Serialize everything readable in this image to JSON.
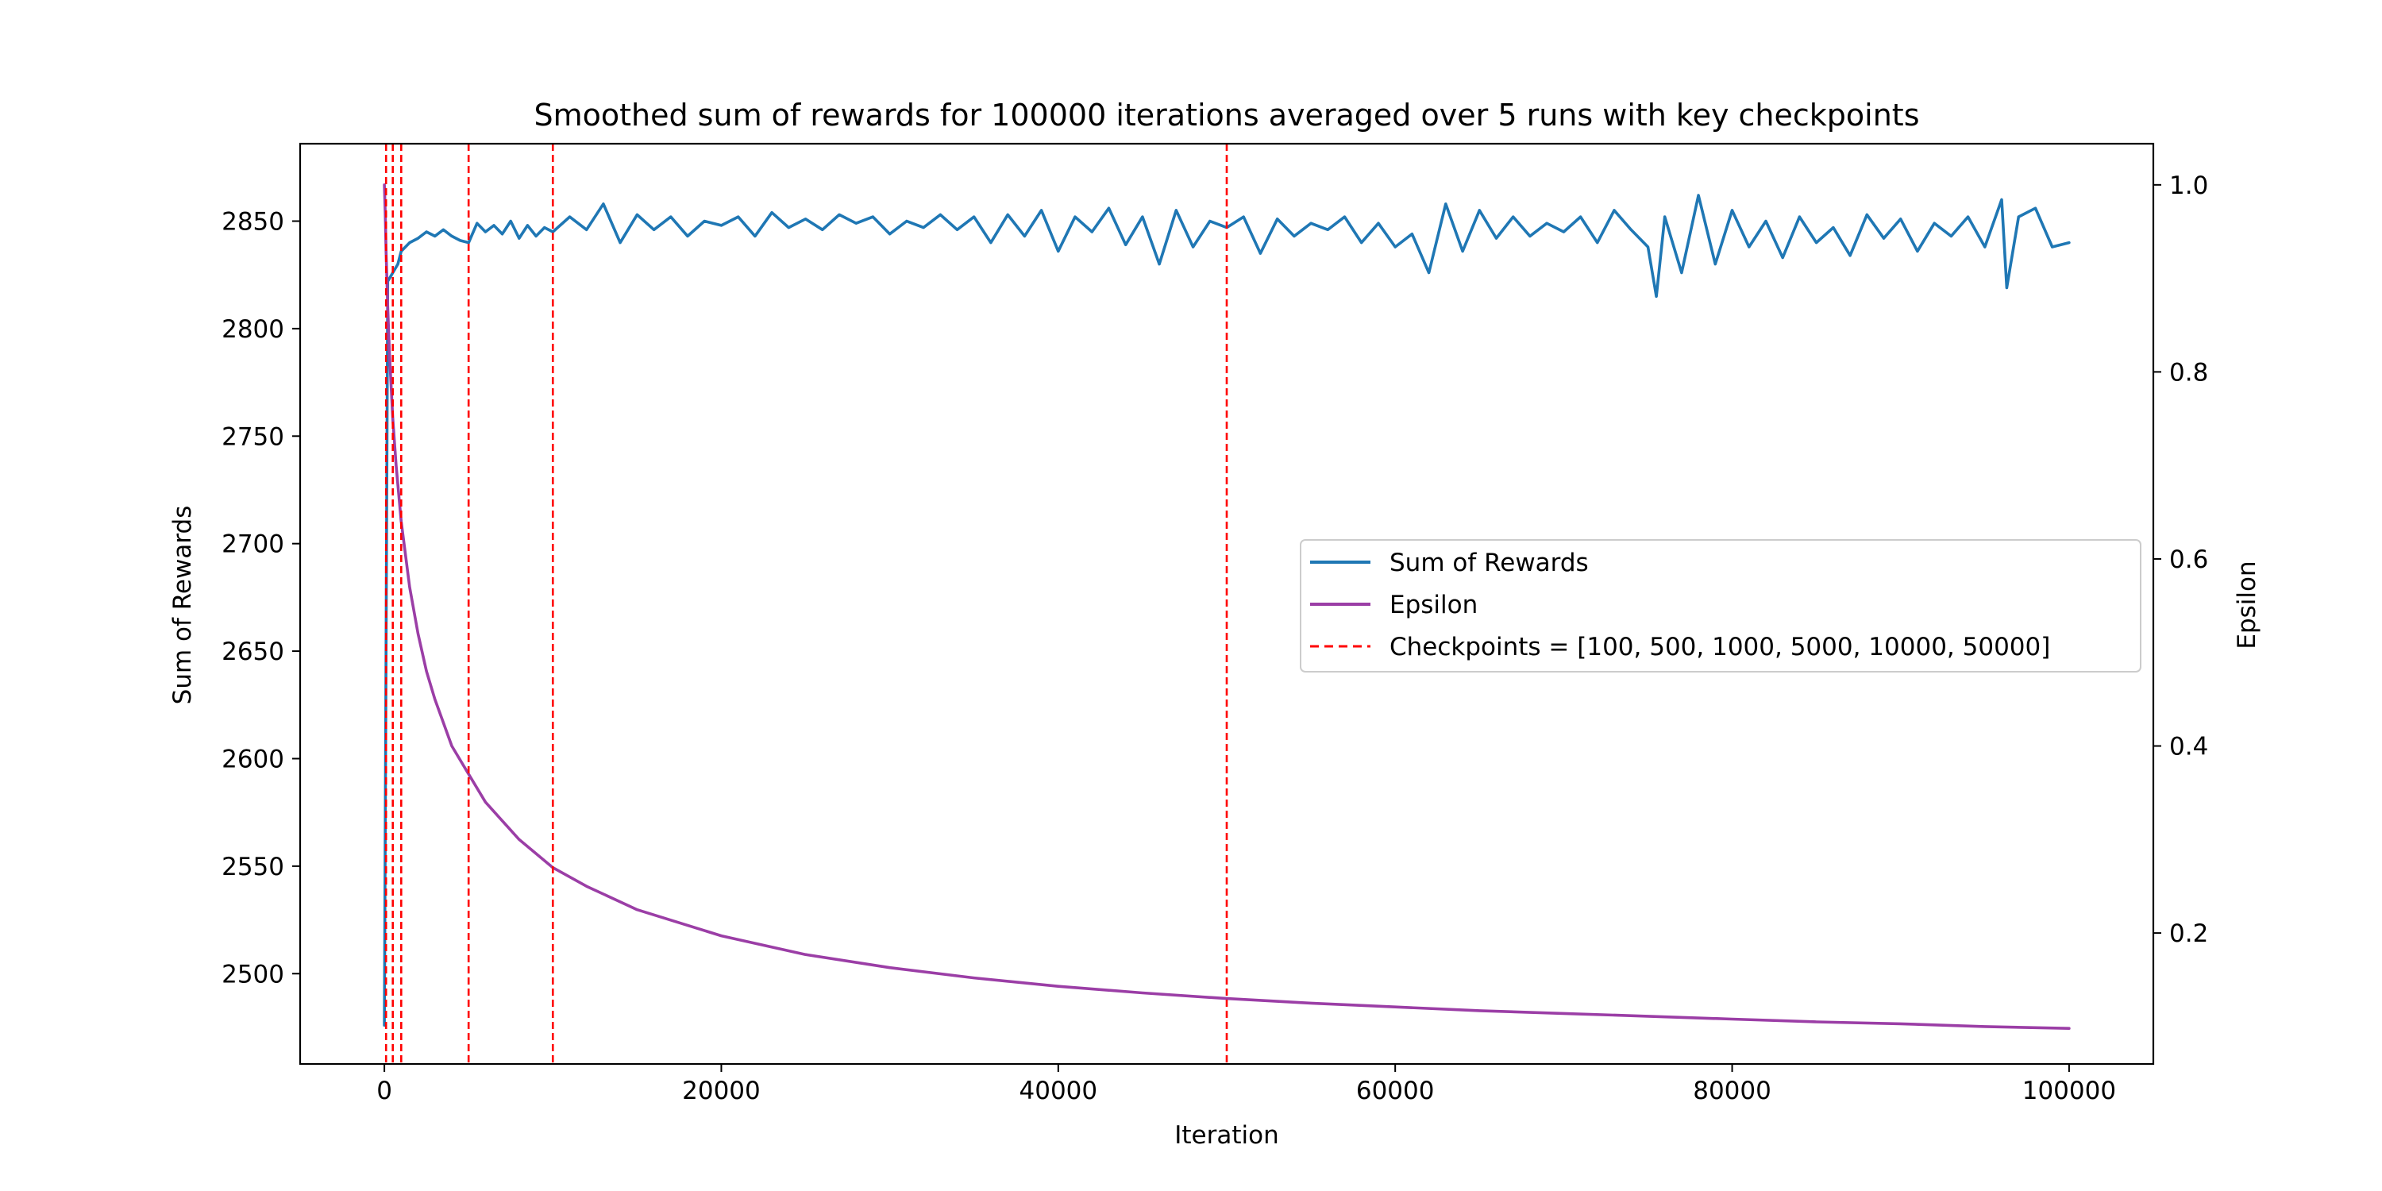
{
  "chart_data": {
    "type": "line",
    "title": "Smoothed sum of rewards for 100000 iterations averaged over 5 runs with key checkpoints",
    "xlabel": "Iteration",
    "ylabel_left": "Sum of Rewards",
    "ylabel_right": "Epsilon",
    "xlim": [
      -5000,
      105000
    ],
    "ylim_left": [
      2458,
      2886
    ],
    "ylim_right": [
      0.06,
      1.044
    ],
    "x_ticks": [
      0,
      20000,
      40000,
      60000,
      80000,
      100000
    ],
    "x_tick_labels": [
      "0",
      "20000",
      "40000",
      "60000",
      "80000",
      "100000"
    ],
    "y_ticks_left": [
      2500,
      2550,
      2600,
      2650,
      2700,
      2750,
      2800,
      2850
    ],
    "y_tick_labels_left": [
      "2500",
      "2550",
      "2600",
      "2650",
      "2700",
      "2750",
      "2800",
      "2850"
    ],
    "y_ticks_right": [
      0.2,
      0.4,
      0.6,
      0.8,
      1.0
    ],
    "y_tick_labels_right": [
      "0.2",
      "0.4",
      "0.6",
      "0.8",
      "1.0"
    ],
    "grid": false,
    "legend_placement": "center-right",
    "series": [
      {
        "name": "Sum of Rewards",
        "axis": "left",
        "color": "#1f77b4",
        "x": [
          0,
          200,
          500,
          800,
          1000,
          1500,
          2000,
          2500,
          3000,
          3500,
          4000,
          4500,
          5000,
          5500,
          6000,
          6500,
          7000,
          7500,
          8000,
          8500,
          9000,
          9500,
          10000,
          11000,
          12000,
          13000,
          14000,
          15000,
          16000,
          17000,
          18000,
          19000,
          20000,
          21000,
          22000,
          23000,
          24000,
          25000,
          26000,
          27000,
          28000,
          29000,
          30000,
          31000,
          32000,
          33000,
          34000,
          35000,
          36000,
          37000,
          38000,
          39000,
          40000,
          41000,
          42000,
          43000,
          44000,
          45000,
          46000,
          47000,
          48000,
          49000,
          50000,
          51000,
          52000,
          53000,
          54000,
          55000,
          56000,
          57000,
          58000,
          59000,
          60000,
          61000,
          62000,
          63000,
          64000,
          65000,
          66000,
          67000,
          68000,
          69000,
          70000,
          71000,
          72000,
          73000,
          74000,
          75000,
          75500,
          76000,
          77000,
          78000,
          79000,
          80000,
          81000,
          82000,
          83000,
          84000,
          85000,
          86000,
          87000,
          88000,
          89000,
          90000,
          91000,
          92000,
          93000,
          94000,
          95000,
          96000,
          96300,
          97000,
          98000,
          99000,
          100000
        ],
        "y": [
          2476,
          2822,
          2826,
          2830,
          2836,
          2840,
          2842,
          2845,
          2843,
          2846,
          2843,
          2841,
          2840,
          2849,
          2845,
          2848,
          2844,
          2850,
          2842,
          2848,
          2843,
          2847,
          2845,
          2852,
          2846,
          2858,
          2840,
          2853,
          2846,
          2852,
          2843,
          2850,
          2848,
          2852,
          2843,
          2854,
          2847,
          2851,
          2846,
          2853,
          2849,
          2852,
          2844,
          2850,
          2847,
          2853,
          2846,
          2852,
          2840,
          2853,
          2843,
          2855,
          2836,
          2852,
          2845,
          2856,
          2839,
          2852,
          2830,
          2855,
          2838,
          2850,
          2847,
          2852,
          2835,
          2851,
          2843,
          2849,
          2846,
          2852,
          2840,
          2849,
          2838,
          2844,
          2826,
          2858,
          2836,
          2855,
          2842,
          2852,
          2843,
          2849,
          2845,
          2852,
          2840,
          2855,
          2846,
          2838,
          2815,
          2852,
          2826,
          2862,
          2830,
          2855,
          2838,
          2850,
          2833,
          2852,
          2840,
          2847,
          2834,
          2853,
          2842,
          2851,
          2836,
          2849,
          2843,
          2852,
          2838,
          2860,
          2819,
          2852,
          2856,
          2838,
          2840
        ]
      },
      {
        "name": "Epsilon",
        "axis": "right",
        "color": "#9b3ea6",
        "x": [
          0,
          50,
          100,
          200,
          300,
          500,
          700,
          1000,
          1500,
          2000,
          2500,
          3000,
          4000,
          5000,
          6000,
          7000,
          8000,
          10000,
          12000,
          15000,
          20000,
          25000,
          30000,
          35000,
          40000,
          45000,
          50000,
          55000,
          60000,
          65000,
          70000,
          75000,
          80000,
          85000,
          90000,
          95000,
          100000
        ],
        "y": [
          1.0,
          0.97,
          0.93,
          0.87,
          0.82,
          0.75,
          0.7,
          0.64,
          0.57,
          0.52,
          0.48,
          0.45,
          0.4,
          0.37,
          0.34,
          0.32,
          0.3,
          0.27,
          0.25,
          0.225,
          0.197,
          0.177,
          0.163,
          0.152,
          0.143,
          0.136,
          0.13,
          0.125,
          0.121,
          0.117,
          0.114,
          0.111,
          0.108,
          0.105,
          0.103,
          0.1,
          0.098
        ]
      },
      {
        "name": "Checkpoints = [100, 500, 1000, 5000, 10000, 50000]",
        "kind": "vlines",
        "color": "#ff0000",
        "x": [
          100,
          500,
          1000,
          5000,
          10000,
          50000
        ]
      }
    ]
  }
}
